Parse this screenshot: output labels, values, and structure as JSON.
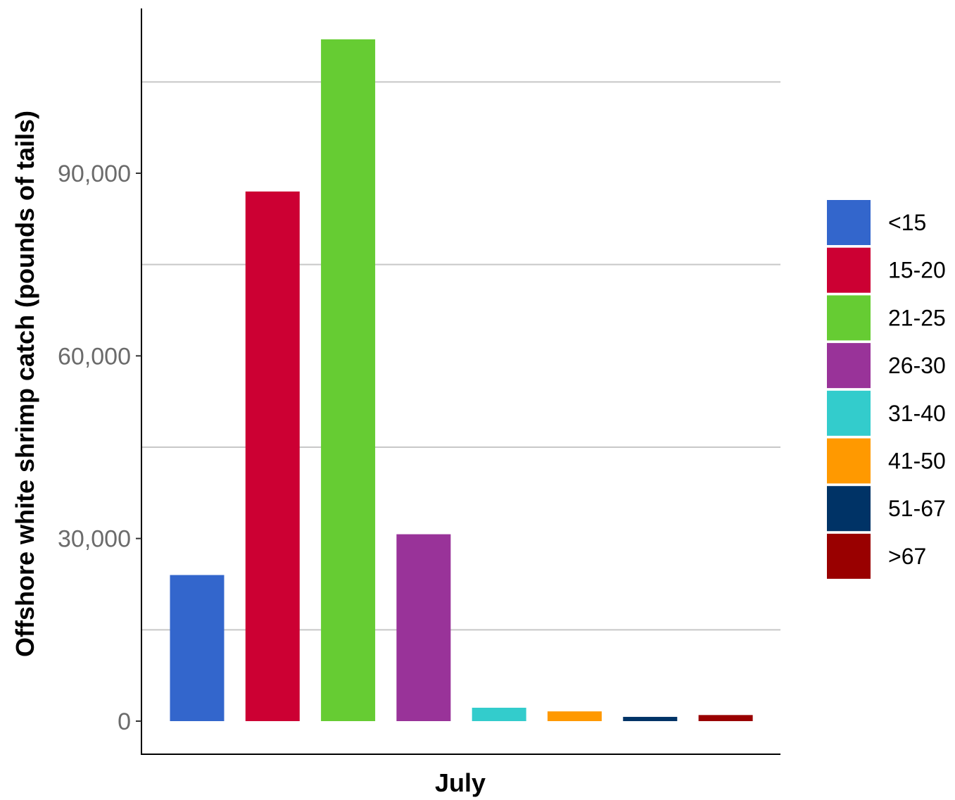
{
  "chart_data": {
    "type": "bar",
    "categories": [
      "July"
    ],
    "xlabel": "July",
    "ylabel": "Offshore white shrimp catch (pounds of tails)",
    "ylim": [
      0,
      123000
    ],
    "yticks": [
      0,
      30000,
      60000,
      90000
    ],
    "ytick_labels": [
      "0",
      "30,000",
      "60,000",
      "90,000"
    ],
    "minor_gridlines": [
      15000,
      45000,
      75000,
      105000
    ],
    "grid": "horizontal",
    "legend_position": "right",
    "series": [
      {
        "name": "<15",
        "values": [
          24000
        ],
        "color": "#3366CC"
      },
      {
        "name": "15-20",
        "values": [
          87000
        ],
        "color": "#CC0033"
      },
      {
        "name": "21-25",
        "values": [
          112000
        ],
        "color": "#66CC33"
      },
      {
        "name": "26-30",
        "values": [
          30700
        ],
        "color": "#993399"
      },
      {
        "name": "31-40",
        "values": [
          2200
        ],
        "color": "#33CCCC"
      },
      {
        "name": "41-50",
        "values": [
          1600
        ],
        "color": "#FF9900"
      },
      {
        "name": "51-67",
        "values": [
          700
        ],
        "color": "#003366"
      },
      {
        "name": ">67",
        "values": [
          1000
        ],
        "color": "#990000"
      }
    ]
  }
}
